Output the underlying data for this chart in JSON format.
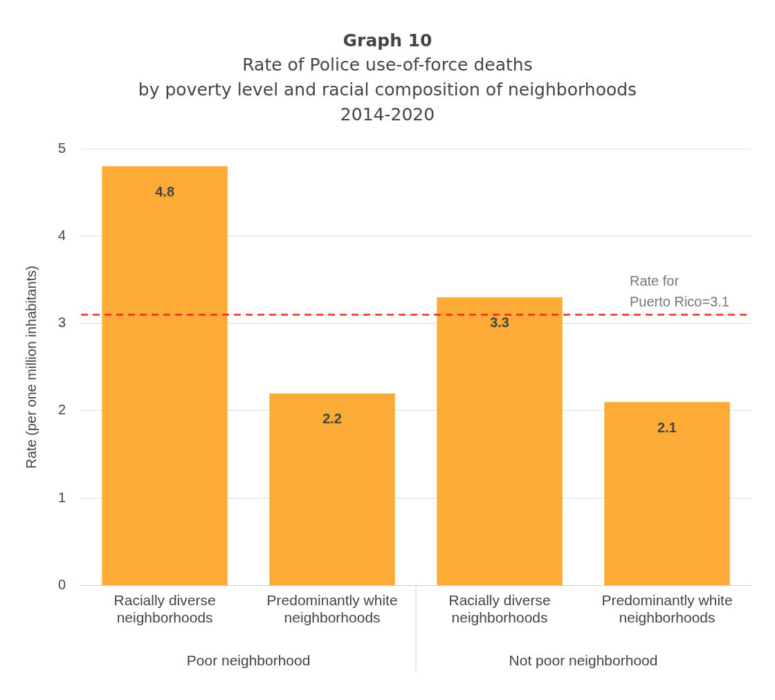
{
  "chart_data": {
    "type": "bar",
    "title": "Graph 10",
    "subtitle": "Rate of Police use-of-force deaths\nby poverty level and racial composition of neighborhoods\n2014-2020",
    "ylabel": "Rate (per one million inhabitants)",
    "categories": [
      "Racially diverse\nneighborhoods",
      "Predominantly white\nneighborhoods",
      "Racially diverse\nneighborhoods",
      "Predominantly white\nneighborhoods"
    ],
    "values": [
      4.8,
      2.2,
      3.3,
      2.1
    ],
    "color": "#fbab36",
    "data_labels": true,
    "ylim": [
      0,
      5
    ],
    "yticks": [
      0,
      1,
      2,
      3,
      4,
      5
    ],
    "grid": "y",
    "legend": false,
    "ref_lines": [
      {
        "axis": "y",
        "value": 3.1,
        "label": "Rate for\nPuerto Rico=3.1",
        "color": "#e8291c",
        "line_style": "dashed"
      }
    ],
    "annotations": [
      "Poor neighborhood",
      "Not poor neighborhood"
    ]
  }
}
